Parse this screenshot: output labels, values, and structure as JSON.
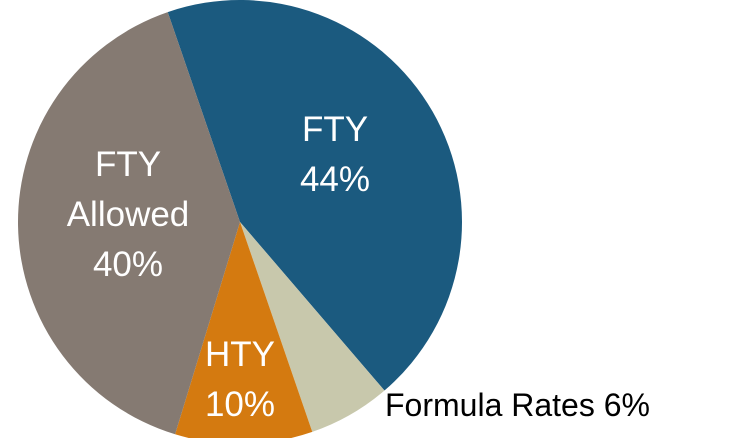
{
  "chart_data": {
    "type": "pie",
    "categories": [
      "FTY",
      "Formula Rates",
      "HTY",
      "FTY Allowed"
    ],
    "values": [
      44,
      6,
      10,
      40
    ],
    "value_labels": [
      "44%",
      "6%",
      "10%",
      "40%"
    ],
    "colors": [
      "#1b5a7f",
      "#c8c8ac",
      "#d47a10",
      "#857a72"
    ]
  }
}
